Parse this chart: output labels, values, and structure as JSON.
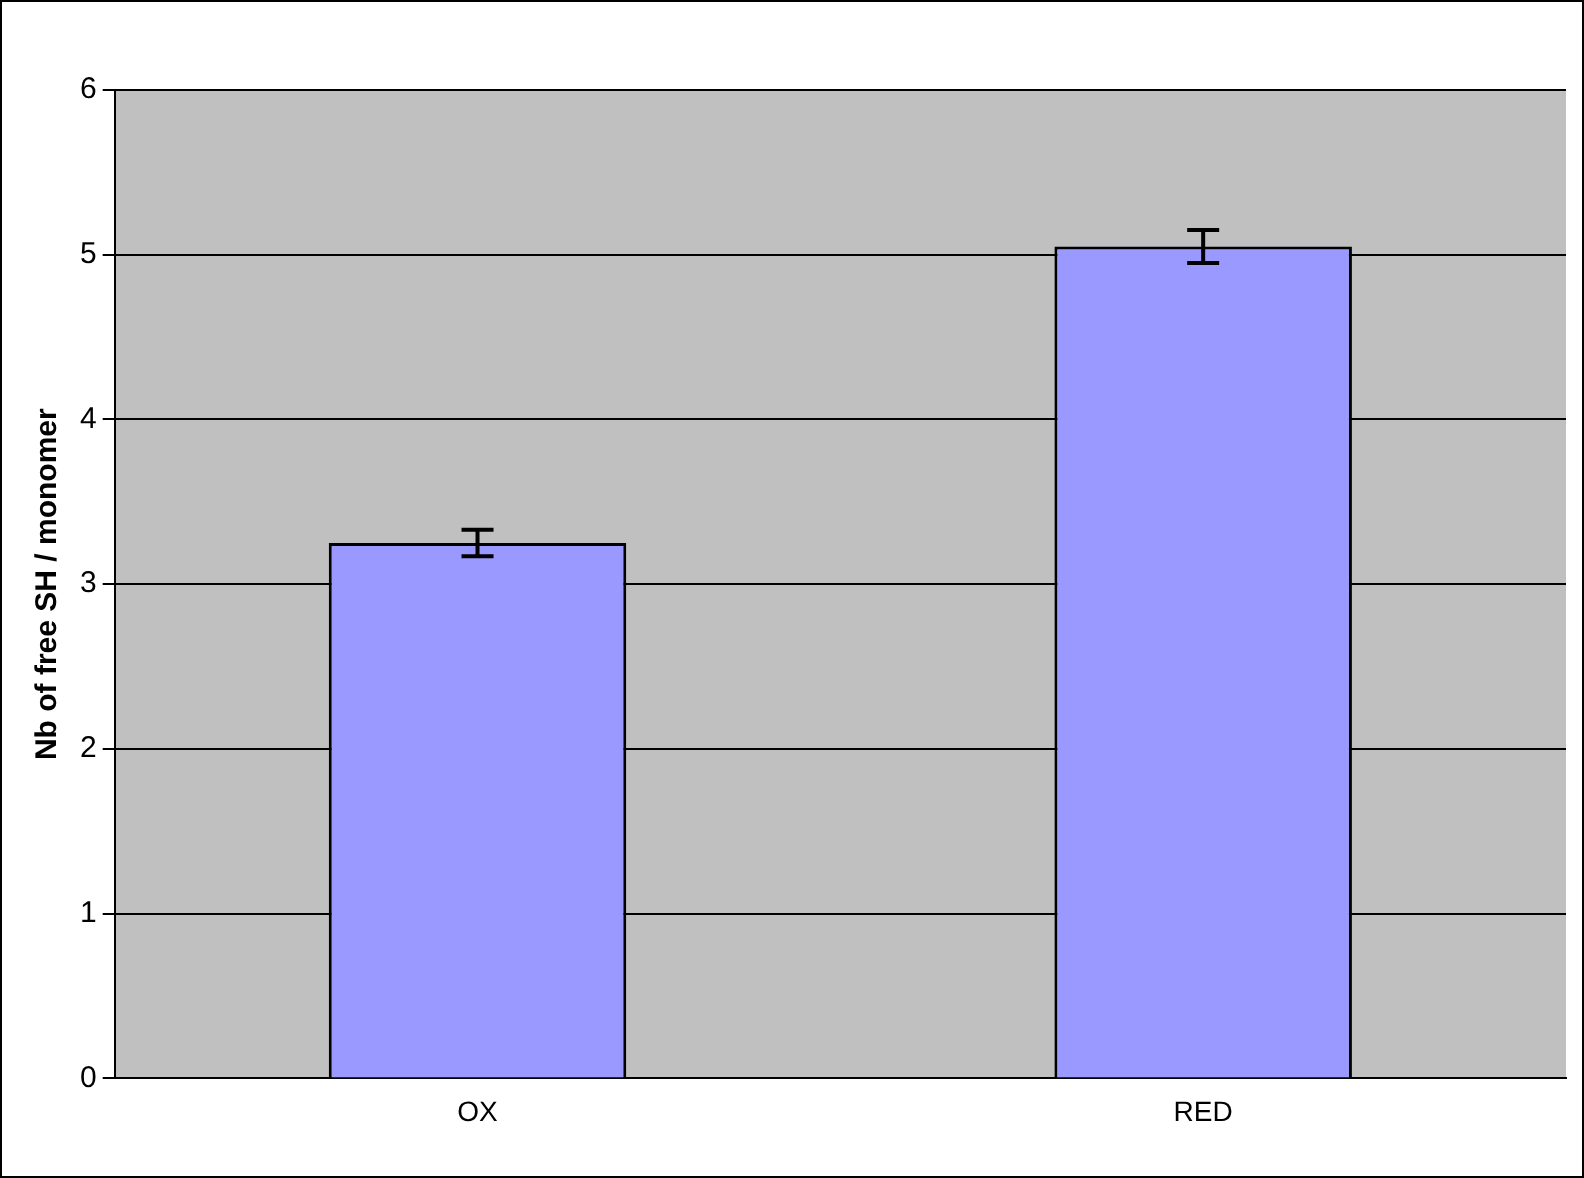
{
  "chart_data": {
    "type": "bar",
    "ylabel": "Nb of free SH / monomer",
    "categories": [
      "OX",
      "RED"
    ],
    "values": [
      3.25,
      5.05
    ],
    "errors": [
      0.08,
      0.1
    ],
    "color": "#9999ff",
    "ylim": [
      0,
      6
    ],
    "yticks": [
      0,
      1,
      2,
      3,
      4,
      5,
      6
    ],
    "grid": "y",
    "legend": false
  }
}
